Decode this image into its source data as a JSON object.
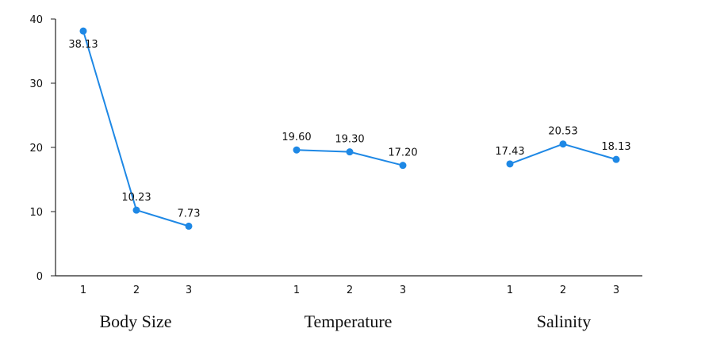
{
  "chart_data": {
    "type": "line",
    "ylim": [
      0,
      40
    ],
    "yticks": [
      0,
      10,
      20,
      30,
      40
    ],
    "grid": false,
    "legend": "none",
    "color": "#1e88e5",
    "groups": [
      {
        "name": "Body Size",
        "x": [
          "1",
          "2",
          "3"
        ],
        "values": [
          38.13,
          10.23,
          7.73
        ],
        "labels": [
          "38.13",
          "10.23",
          "7.73"
        ]
      },
      {
        "name": "Temperature",
        "x": [
          "1",
          "2",
          "3"
        ],
        "values": [
          19.6,
          19.3,
          17.2
        ],
        "labels": [
          "19.60",
          "19.30",
          "17.20"
        ]
      },
      {
        "name": "Salinity",
        "x": [
          "1",
          "2",
          "3"
        ],
        "values": [
          17.43,
          20.53,
          18.13
        ],
        "labels": [
          "17.43",
          "20.53",
          "18.13"
        ]
      }
    ]
  }
}
